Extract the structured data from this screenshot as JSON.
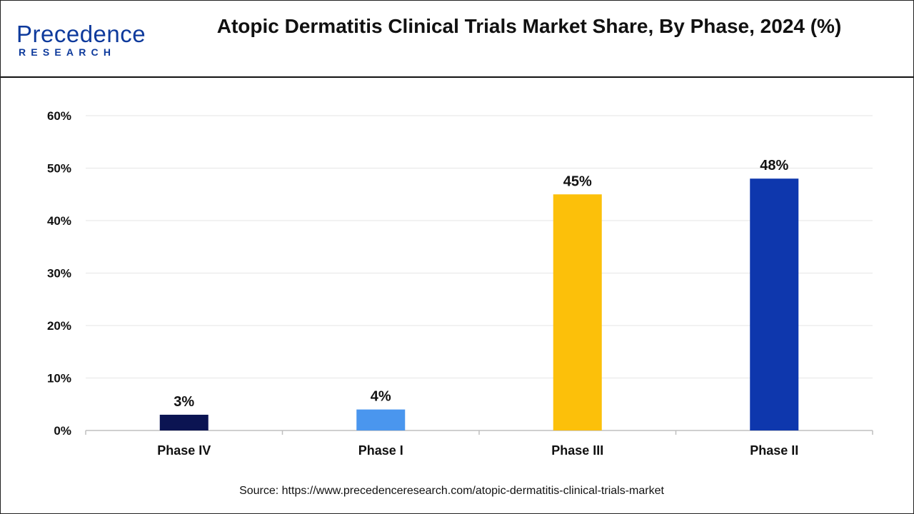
{
  "logo": {
    "line1": "Precedence",
    "line2": "RESEARCH"
  },
  "chart_data": {
    "type": "bar",
    "title": "Atopic Dermatitis Clinical Trials Market Share, By Phase, 2024 (%)",
    "categories": [
      "Phase IV",
      "Phase I",
      "Phase III",
      "Phase II"
    ],
    "values": [
      3,
      4,
      45,
      48
    ],
    "data_labels": [
      "3%",
      "4%",
      "45%",
      "48%"
    ],
    "colors": [
      "#0b1452",
      "#4a96ee",
      "#fcc00a",
      "#0e37ad"
    ],
    "ylim": [
      0,
      60
    ],
    "yticks": [
      "0%",
      "10%",
      "20%",
      "30%",
      "40%",
      "50%",
      "60%"
    ],
    "grid": true,
    "xlabel": "",
    "ylabel": ""
  },
  "source": "Source: https://www.precedenceresearch.com/atopic-dermatitis-clinical-trials-market"
}
